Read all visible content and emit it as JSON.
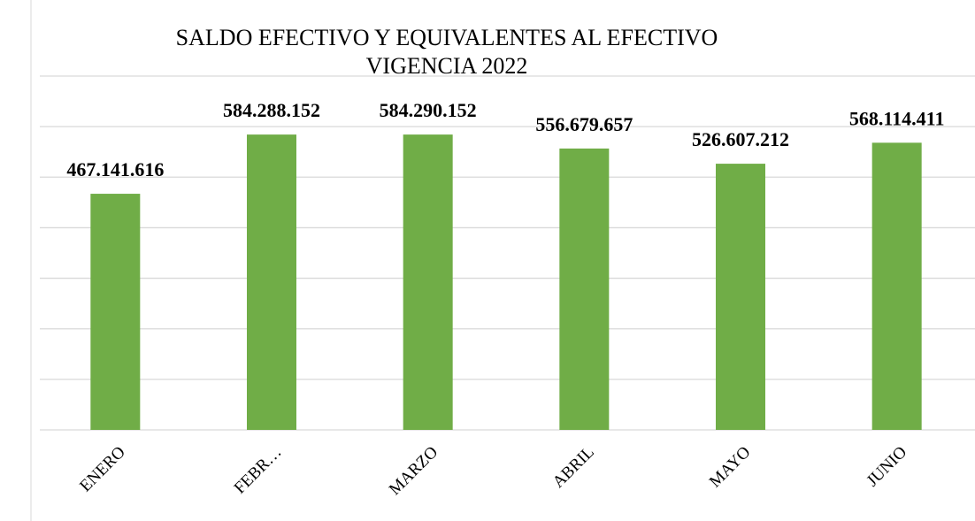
{
  "chart_data": {
    "type": "bar",
    "title": [
      "SALDO EFECTIVO Y EQUIVALENTES AL EFECTIVO",
      "VIGENCIA 2022"
    ],
    "categories": [
      "ENERO",
      "FEBR…",
      "MARZO",
      "ABRIL",
      "MAYO",
      "JUNIO"
    ],
    "values": [
      467141616,
      584288152,
      584290152,
      556679657,
      526607212,
      568114411
    ],
    "value_labels": [
      "467.141.616",
      "584.288.152",
      "584.290.152",
      "556.679.657",
      "526.607.212",
      "568.114.411"
    ],
    "color": "#70ad47",
    "ylim": [
      0,
      700000000
    ],
    "yticks": [
      0,
      100000000,
      200000000,
      300000000,
      400000000,
      500000000,
      600000000,
      700000000
    ],
    "grid": true
  }
}
